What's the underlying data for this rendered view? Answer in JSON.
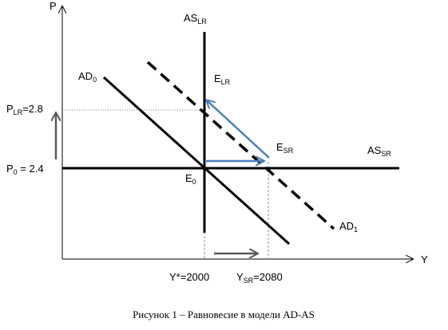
{
  "axes": {
    "y_label": "P",
    "x_label": "Y"
  },
  "curves": {
    "as_lr": {
      "main": "AS",
      "sub": "LR"
    },
    "as_sr": {
      "main": "AS",
      "sub": "SR"
    },
    "ad0": {
      "main": "AD",
      "sub": "0"
    },
    "ad1": {
      "main": "AD",
      "sub": "1"
    }
  },
  "points": {
    "e0": {
      "main": "E",
      "sub": "0"
    },
    "e_lr": {
      "main": "E",
      "sub": "LR"
    },
    "e_sr": {
      "main": "E",
      "sub": "SR"
    }
  },
  "price_labels": {
    "p_lr": {
      "main": "P",
      "sub": "LR",
      "rest": "=2.8"
    },
    "p0": {
      "main": "P",
      "sub": "0",
      "rest": " = 2.4"
    }
  },
  "output_labels": {
    "y_star": {
      "main": "Y*=2000"
    },
    "y_sr": {
      "main": "Y",
      "sub": "SR",
      "rest": "=2080"
    }
  },
  "caption": "Рисунок 1 – Равновесие в модели AD-AS"
}
